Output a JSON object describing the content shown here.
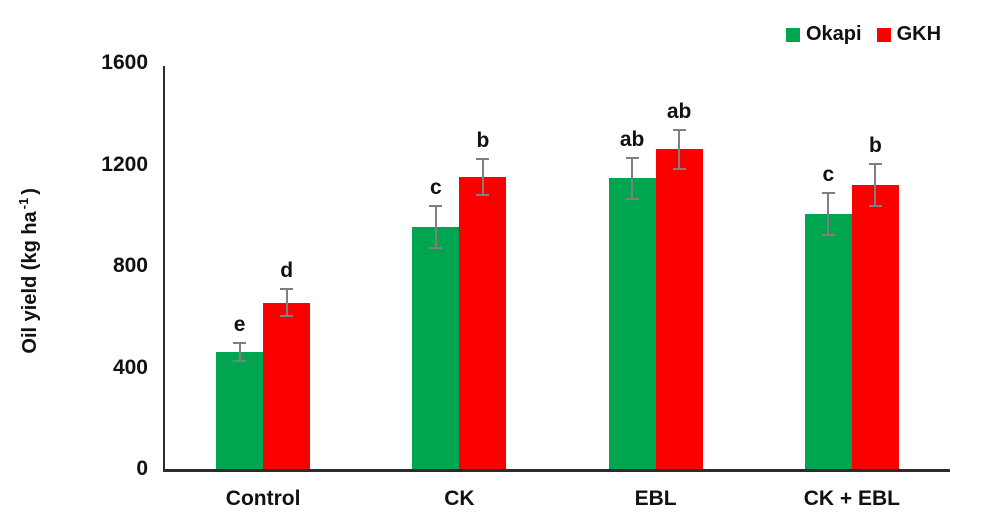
{
  "chart_data": {
    "type": "bar",
    "title": "",
    "categories": [
      "Control",
      "CK",
      "EBL",
      "CK + EBL"
    ],
    "series": [
      {
        "name": "Okapi",
        "color": "#00A550",
        "values": [
          460,
          955,
          1145,
          1005
        ],
        "errors": [
          40,
          87,
          85,
          85
        ],
        "sig_letters": [
          "e",
          "c",
          "ab",
          "c"
        ]
      },
      {
        "name": "GKH",
        "color": "#FC0000",
        "values": [
          655,
          1150,
          1260,
          1120
        ],
        "errors": [
          57,
          75,
          80,
          87
        ],
        "sig_letters": [
          "d",
          "b",
          "ab",
          "b"
        ]
      }
    ],
    "ylabel": {
      "main": "Oil yield (kg ha",
      "sup": "-1",
      "close": ")"
    },
    "xlabel": "",
    "ylim": [
      0,
      1600
    ],
    "yticks": [
      0,
      400,
      800,
      1200,
      1600
    ],
    "grid": false,
    "legend_position": "top-right",
    "colors": {
      "axis": "#2b2b2b",
      "error_bar": "#7f7f7f",
      "text": "#111111",
      "background": "#ffffff"
    }
  }
}
